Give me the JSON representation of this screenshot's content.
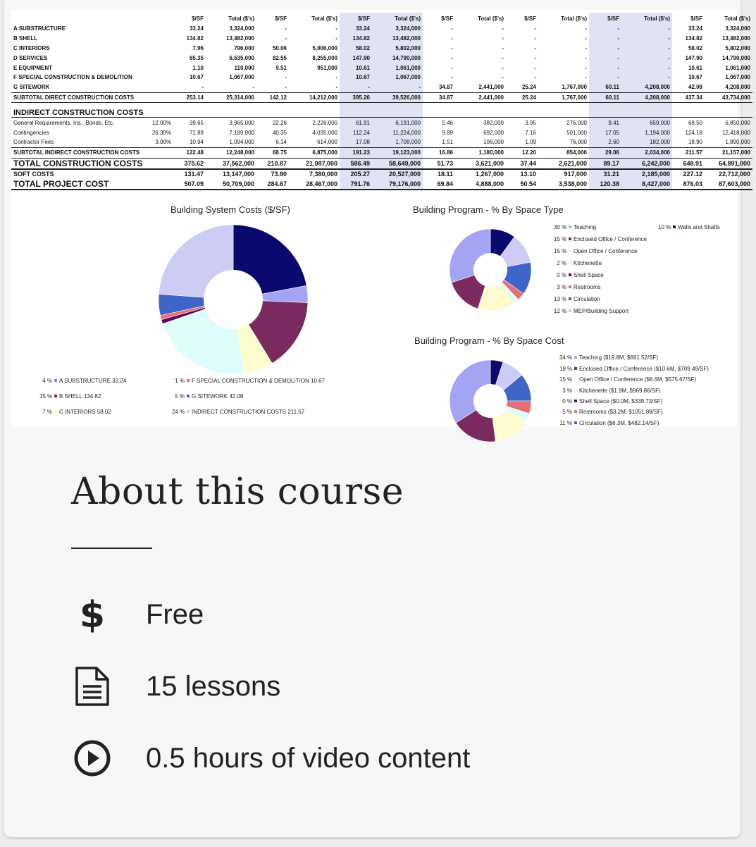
{
  "sheet": {
    "header": [
      "",
      "",
      "$/SF",
      "Total ($'s)",
      "$/SF",
      "Total ($'s)",
      "$/SF",
      "Total ($'s)",
      "$/SF",
      "Total ($'s)",
      "$/SF",
      "Total ($'s)",
      "$/SF",
      "Total ($'s)",
      "$/SF",
      "Total ($'s)"
    ],
    "rows": [
      {
        "k": "bold",
        "c": [
          "A SUBSTRUCTURE",
          "",
          "33.24",
          "3,324,000",
          "-",
          "-",
          "33.24",
          "3,324,000",
          "-",
          "-",
          "-",
          "-",
          "-",
          "-",
          "33.24",
          "3,324,000"
        ]
      },
      {
        "k": "bold",
        "c": [
          "B SHELL",
          "",
          "134.82",
          "13,482,000",
          "-",
          "-",
          "134.82",
          "13,482,000",
          "-",
          "-",
          "-",
          "-",
          "-",
          "-",
          "134.82",
          "13,482,000"
        ]
      },
      {
        "k": "bold",
        "c": [
          "C INTERIORS",
          "",
          "7.96",
          "796,000",
          "50.06",
          "5,006,000",
          "58.02",
          "5,802,000",
          "-",
          "-",
          "-",
          "-",
          "-",
          "-",
          "58.02",
          "5,802,000"
        ]
      },
      {
        "k": "bold",
        "c": [
          "D SERVICES",
          "",
          "65.35",
          "6,535,000",
          "82.55",
          "8,255,000",
          "147.90",
          "14,790,000",
          "-",
          "-",
          "-",
          "-",
          "-",
          "-",
          "147.90",
          "14,790,000"
        ]
      },
      {
        "k": "bold",
        "c": [
          "E EQUIPMENT",
          "",
          "1.10",
          "110,000",
          "9.51",
          "951,000",
          "10.61",
          "1,061,000",
          "-",
          "-",
          "-",
          "-",
          "-",
          "-",
          "10.61",
          "1,061,000"
        ]
      },
      {
        "k": "bold",
        "c": [
          "F SPECIAL CONSTRUCTION & DEMOLITION",
          "",
          "10.67",
          "1,067,000",
          "-",
          "-",
          "10.67",
          "1,067,000",
          "-",
          "-",
          "-",
          "-",
          "-",
          "-",
          "10.67",
          "1,067,000"
        ]
      },
      {
        "k": "bold",
        "c": [
          "G SITEWORK",
          "",
          "-",
          "-",
          "-",
          "-",
          "-",
          "-",
          "34.87",
          "2,441,000",
          "25.24",
          "1,767,000",
          "60.11",
          "4,208,000",
          "42.08",
          "4,208,000"
        ]
      },
      {
        "k": "sub",
        "c": [
          "SUBTOTAL DIRECT CONSTRUCTION COSTS",
          "",
          "253.14",
          "25,314,000",
          "142.12",
          "14,212,000",
          "395.26",
          "39,526,000",
          "34.87",
          "2,441,000",
          "25.24",
          "1,767,000",
          "60.11",
          "4,208,000",
          "437.34",
          "43,734,000"
        ]
      },
      {
        "k": "sect",
        "c": [
          "INDIRECT CONSTRUCTION COSTS",
          "",
          "",
          "",
          "",
          "",
          "",
          "",
          "",
          "",
          "",
          "",
          "",
          "",
          "",
          ""
        ]
      },
      {
        "k": "",
        "c": [
          "General Requirements, Ins., Bonds, Etc.",
          "12.00%",
          "39.65",
          "3,965,000",
          "22.26",
          "2,226,000",
          "61.91",
          "6,191,000",
          "5.46",
          "382,000",
          "3.95",
          "276,000",
          "9.41",
          "659,000",
          "68.50",
          "6,850,000"
        ]
      },
      {
        "k": "",
        "c": [
          "Contingencies",
          "26.30%",
          "71.89",
          "7,189,000",
          "40.35",
          "4,035,000",
          "112.24",
          "11,224,000",
          "9.89",
          "692,000",
          "7.16",
          "501,000",
          "17.05",
          "1,194,000",
          "124.18",
          "12,418,000"
        ]
      },
      {
        "k": "",
        "c": [
          "Contractor Fees",
          "3.00%",
          "10.94",
          "1,094,000",
          "6.14",
          "614,000",
          "17.08",
          "1,708,000",
          "1.51",
          "106,000",
          "1.09",
          "76,000",
          "2.60",
          "182,000",
          "18.90",
          "1,890,000"
        ]
      },
      {
        "k": "sub",
        "c": [
          "SUBTOTAL INDIRECT CONSTRUCTION COSTS",
          "",
          "122.48",
          "12,248,000",
          "68.75",
          "6,875,000",
          "191.23",
          "19,123,000",
          "16.86",
          "1,180,000",
          "12.20",
          "854,000",
          "29.06",
          "2,034,000",
          "211.57",
          "21,157,000"
        ]
      },
      {
        "k": "tot big",
        "c": [
          "TOTAL CONSTRUCTION COSTS",
          "",
          "375.62",
          "37,562,000",
          "210.87",
          "21,087,000",
          "586.49",
          "58,649,000",
          "51.73",
          "3,621,000",
          "37.44",
          "2,621,000",
          "89.17",
          "6,242,000",
          "648.91",
          "64,891,000"
        ]
      },
      {
        "k": "tot",
        "c": [
          "SOFT COSTS",
          "",
          "131.47",
          "13,147,000",
          "73.80",
          "7,380,000",
          "205.27",
          "20,527,000",
          "18.11",
          "1,267,000",
          "13.10",
          "917,000",
          "31.21",
          "2,185,000",
          "227.12",
          "22,712,000"
        ]
      },
      {
        "k": "tot big",
        "c": [
          "TOTAL PROJECT COST",
          "",
          "507.09",
          "50,709,000",
          "284.67",
          "28,467,000",
          "791.76",
          "79,176,000",
          "69.84",
          "4,888,000",
          "50.54",
          "3,538,000",
          "120.38",
          "8,427,000",
          "876.03",
          "87,603,000"
        ]
      }
    ]
  },
  "chart_data": [
    {
      "type": "pie",
      "title": "Building System Costs ($/SF)",
      "series": [
        {
          "values": [
            4,
            15,
            7,
            17,
            1,
            1,
            5,
            24,
            26
          ]
        }
      ],
      "legend": [
        {
          "pct": "4 %",
          "label": "A SUBSTRUCTURE 33.24",
          "color": "#6f8ef0"
        },
        {
          "pct": "15 %",
          "label": "B SHELL 134.82",
          "color": "#7b2a5e"
        },
        {
          "pct": "7 %",
          "label": "C INTERIORS 58.02",
          "color": "#fdfccc"
        },
        {
          "pct": "1 %",
          "label": "F SPECIAL CONSTRUCTION & DEMOLITION 10.67",
          "color": "#e86f74"
        },
        {
          "pct": "5 %",
          "label": "G SITEWORK 42.08",
          "color": "#3f65c8"
        },
        {
          "pct": "24 %",
          "label": "INDIRECT CONSTRUCTION COSTS 211.57",
          "color": "#ccccf4"
        }
      ],
      "slice_colors": [
        "#a4a4f4",
        "#7b2a5e",
        "#fdfccc",
        "#dffcfc",
        "#5a0b5e",
        "#e86f74",
        "#3f65c8",
        "#ccccf4",
        "#0a0a6e"
      ]
    },
    {
      "type": "pie",
      "title": "Building Program - % By Space Type",
      "series": [
        {
          "values": [
            30,
            15,
            15,
            2,
            0,
            3,
            13,
            12,
            10
          ]
        }
      ],
      "legend": [
        {
          "pct": "30 %",
          "label": "Teaching",
          "color": "#a4a4f4"
        },
        {
          "pct": "15 %",
          "label": "Enclosed Office / Conference",
          "color": "#7b2a5e"
        },
        {
          "pct": "15 %",
          "label": "Open Office / Conference",
          "color": "#fdfccc"
        },
        {
          "pct": "2 %",
          "label": "Kitchenette",
          "color": "#dffcfc"
        },
        {
          "pct": "0 %",
          "label": "Shell Space",
          "color": "#5a0b5e"
        },
        {
          "pct": "3 %",
          "label": "Restrooms",
          "color": "#e86f74"
        },
        {
          "pct": "13 %",
          "label": "Circulation",
          "color": "#3f65c8"
        },
        {
          "pct": "12 %",
          "label": "MEP/Building Support",
          "color": "#ccccf4"
        },
        {
          "pct": "10 %",
          "label": "Walls and Shafts",
          "color": "#0a0a6e"
        }
      ]
    },
    {
      "type": "pie",
      "title": "Building Program - % By Space Cost",
      "series": [
        {
          "values": [
            34,
            18,
            15,
            3,
            0,
            5,
            11,
            9,
            5
          ]
        }
      ],
      "legend": [
        {
          "pct": "34 %",
          "label": "Teaching ($19.8M, $661.52/SF)",
          "color": "#a4a4f4"
        },
        {
          "pct": "18 %",
          "label": "Enclosed Office / Conference ($10.6M, $709.49/SF)",
          "color": "#7b2a5e"
        },
        {
          "pct": "15 %",
          "label": "Open Office / Conference ($8.6M, $575.67/SF)",
          "color": "#fdfccc"
        },
        {
          "pct": "3 %",
          "label": "Kitchenette ($1.9M, $969.86/SF)",
          "color": "#dffcfc"
        },
        {
          "pct": "0 %",
          "label": "Shell Space ($0.0M, $339.73/SF)",
          "color": "#5a0b5e"
        },
        {
          "pct": "5 %",
          "label": "Restrooms ($3.2M, $1051.88/SF)",
          "color": "#e86f74"
        },
        {
          "pct": "11 %",
          "label": "Circulation ($6.3M, $482.14/SF)",
          "color": "#3f65c8"
        }
      ]
    }
  ],
  "about": {
    "title": "About this course",
    "price": "Free",
    "lessons": "15 lessons",
    "video": "0.5 hours of video content"
  },
  "icons": {
    "price": "dollar-icon",
    "lessons": "document-icon",
    "video": "play-circle-icon"
  }
}
